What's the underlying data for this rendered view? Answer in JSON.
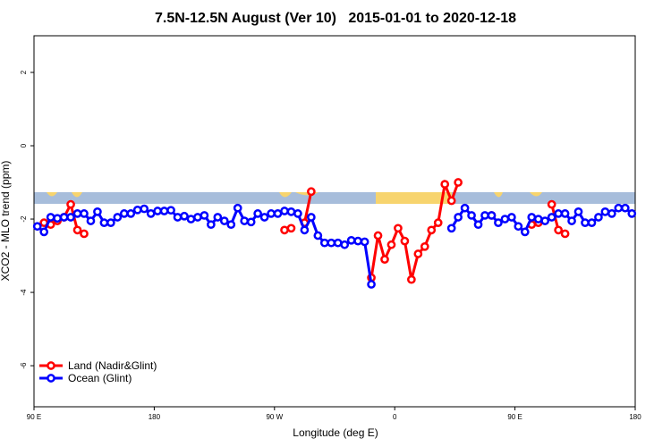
{
  "chart_data": {
    "type": "line",
    "title": "7.5N-12.5N August (Ver 10)   2015-01-01 to 2020-12-18",
    "xlabel": "Longitude (deg E)",
    "ylabel": "XCO2 - MLO trend (ppm)",
    "xlim": [
      90,
      540
    ],
    "ylim": [
      -7.12,
      3.0
    ],
    "xticks": [
      {
        "value": 90,
        "label": "90 E"
      },
      180,
      {
        "value": 270,
        "label": "90 W"
      },
      {
        "value": 360,
        "label": "0"
      },
      {
        "value": 450,
        "label": "90 E"
      },
      {
        "value": 540,
        "label": "180"
      }
    ],
    "yticks": [
      -6,
      -4,
      -2,
      0,
      2
    ],
    "legend": "bottom-left",
    "x": [
      92.5,
      97.5,
      102.5,
      107.5,
      112.5,
      117.5,
      122.5,
      127.5,
      132.5,
      137.5,
      142.5,
      147.5,
      152.5,
      157.5,
      162.5,
      167.5,
      172.5,
      177.5,
      182.5,
      187.5,
      192.5,
      197.5,
      202.5,
      207.5,
      212.5,
      217.5,
      222.5,
      227.5,
      232.5,
      237.5,
      242.5,
      247.5,
      252.5,
      257.5,
      262.5,
      267.5,
      272.5,
      277.5,
      282.5,
      287.5,
      292.5,
      297.5,
      302.5,
      307.5,
      312.5,
      317.5,
      322.5,
      327.5,
      332.5,
      337.5,
      342.5,
      347.5,
      352.5,
      357.5,
      362.5,
      367.5,
      372.5,
      377.5,
      382.5,
      387.5,
      392.5,
      397.5,
      402.5,
      407.5,
      412.5,
      417.5,
      422.5,
      427.5,
      432.5,
      437.5,
      442.5,
      447.5,
      452.5,
      457.5,
      462.5,
      467.5,
      472.5,
      477.5,
      482.5,
      487.5,
      492.5,
      497.5,
      502.5,
      507.5,
      512.5,
      517.5,
      522.5,
      527.5,
      532.5,
      537.5
    ],
    "series": [
      {
        "name": "Land (Nadir&Glint)",
        "color": "#ff0000",
        "values": [
          null,
          -2.1,
          -2.15,
          -2.05,
          -1.95,
          -1.6,
          -2.3,
          -2.4,
          null,
          null,
          null,
          null,
          null,
          null,
          null,
          null,
          null,
          null,
          null,
          null,
          null,
          null,
          null,
          null,
          null,
          null,
          null,
          null,
          null,
          null,
          null,
          null,
          null,
          null,
          null,
          null,
          null,
          -2.3,
          -2.25,
          null,
          -2.1,
          -1.25,
          null,
          null,
          null,
          null,
          null,
          null,
          null,
          null,
          -3.6,
          -2.45,
          -3.1,
          -2.7,
          -2.25,
          -2.6,
          -3.65,
          -2.95,
          -2.75,
          -2.3,
          -2.1,
          -1.05,
          -1.5,
          -1.0,
          null,
          null,
          null,
          null,
          -1.9,
          null,
          null,
          null,
          null,
          null,
          -2.15,
          -2.1,
          null,
          -1.6,
          -2.3,
          -2.4,
          null,
          null,
          null,
          null,
          null,
          null,
          null,
          null,
          null,
          null
        ]
      },
      {
        "name": "Ocean (Glint)",
        "color": "#0000ff",
        "values": [
          -2.2,
          -2.35,
          -1.95,
          -1.98,
          -1.95,
          -1.95,
          -1.85,
          -1.85,
          -2.05,
          -1.8,
          -2.1,
          -2.1,
          -1.95,
          -1.85,
          -1.85,
          -1.75,
          -1.72,
          -1.85,
          -1.78,
          -1.78,
          -1.76,
          -1.95,
          -1.92,
          -2.0,
          -1.95,
          -1.9,
          -2.15,
          -1.95,
          -2.05,
          -2.15,
          -1.7,
          -2.05,
          -2.08,
          -1.85,
          -1.95,
          -1.85,
          -1.85,
          -1.78,
          -1.8,
          -1.85,
          -2.3,
          -1.95,
          -2.45,
          -2.65,
          -2.65,
          -2.65,
          -2.7,
          -2.58,
          -2.6,
          -2.62,
          -3.78,
          null,
          null,
          null,
          null,
          null,
          null,
          null,
          null,
          null,
          null,
          null,
          -2.25,
          -1.95,
          -1.7,
          -1.9,
          -2.15,
          -1.9,
          -1.9,
          -2.1,
          -2.0,
          -1.95,
          -2.2,
          -2.35,
          -1.95,
          -2.0,
          -2.05,
          -1.95,
          -1.85,
          -1.85,
          -2.05,
          -1.8,
          -2.1,
          -2.1,
          -1.95,
          -1.8,
          -1.85,
          -1.7,
          -1.7,
          -1.85
        ]
      }
    ]
  }
}
